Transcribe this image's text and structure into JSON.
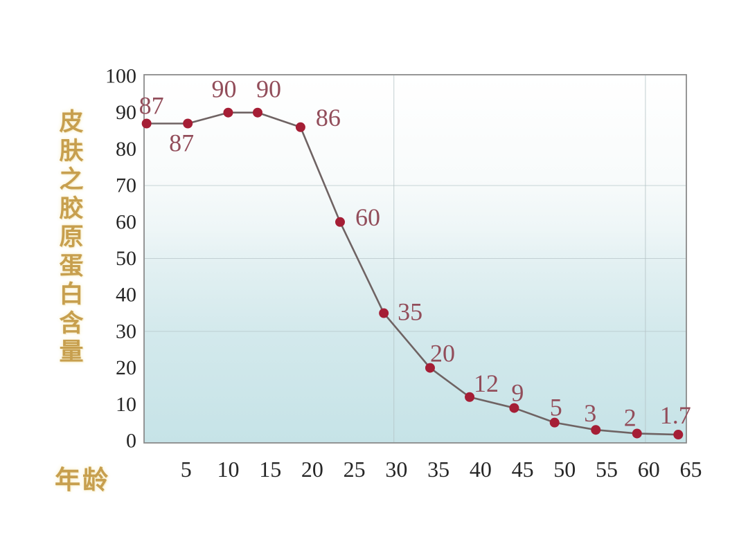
{
  "chart_data": {
    "type": "line",
    "title": "",
    "xlabel": "年龄",
    "ylabel": "皮肤之胶原蛋白含量",
    "x_ticks": [
      5,
      10,
      15,
      20,
      25,
      30,
      35,
      40,
      45,
      50,
      55,
      60,
      65
    ],
    "y_ticks": [
      0,
      10,
      20,
      30,
      40,
      50,
      60,
      70,
      80,
      90,
      100
    ],
    "xlim": [
      0,
      64.5
    ],
    "ylim": [
      0,
      100
    ],
    "legend": "none",
    "grid": {
      "visible": true,
      "h_values": [
        70,
        50,
        30
      ],
      "v_ages": [
        29.7,
        59.6
      ]
    },
    "series": [
      {
        "name": "skin-collagen-content-vs-age",
        "points": [
          {
            "age": 0.3,
            "value": 87,
            "label": "87",
            "label_dx": 7,
            "label_dy": -14
          },
          {
            "age": 5.2,
            "value": 87,
            "label": "87",
            "label_dx": -9,
            "label_dy": 40
          },
          {
            "age": 10,
            "value": 90,
            "label": "90",
            "label_dx": -6,
            "label_dy": -22
          },
          {
            "age": 13.5,
            "value": 90,
            "label": "90",
            "label_dx": 16,
            "label_dy": -22
          },
          {
            "age": 18.6,
            "value": 86,
            "label": "86",
            "label_dx": 40,
            "label_dy": -2
          },
          {
            "age": 23.3,
            "value": 60,
            "label": "60",
            "label_dx": 40,
            "label_dy": 5
          },
          {
            "age": 28.5,
            "value": 35,
            "label": "35",
            "label_dx": 38,
            "label_dy": 10
          },
          {
            "age": 34,
            "value": 20,
            "label": "20",
            "label_dx": 18,
            "label_dy": -9
          },
          {
            "age": 38.7,
            "value": 12,
            "label": "12",
            "label_dx": 24,
            "label_dy": -8
          },
          {
            "age": 44,
            "value": 9,
            "label": "9",
            "label_dx": 5,
            "label_dy": -10
          },
          {
            "age": 48.8,
            "value": 5,
            "label": "5",
            "label_dx": 2,
            "label_dy": -10
          },
          {
            "age": 53.7,
            "value": 3,
            "label": "3",
            "label_dx": -8,
            "label_dy": -12
          },
          {
            "age": 58.6,
            "value": 2,
            "label": "2",
            "label_dx": -10,
            "label_dy": -11
          },
          {
            "age": 63.5,
            "value": 1.7,
            "label": "1.7",
            "label_dx": -4,
            "label_dy": -16
          }
        ]
      }
    ],
    "colors": {
      "marker": "#a51e35",
      "line": "#6f6363",
      "point_label": "#924d5a",
      "tick_label": "#262626",
      "axis_title": "#c79f4e",
      "plot_border": "#8a8a8a",
      "gridline": "#b4c3c6",
      "bg_gradient": [
        "#ffffff",
        "#f8fbfb",
        "#eef6f7",
        "#e2f0f2",
        "#d3e9ec",
        "#c6e3e7"
      ]
    }
  }
}
